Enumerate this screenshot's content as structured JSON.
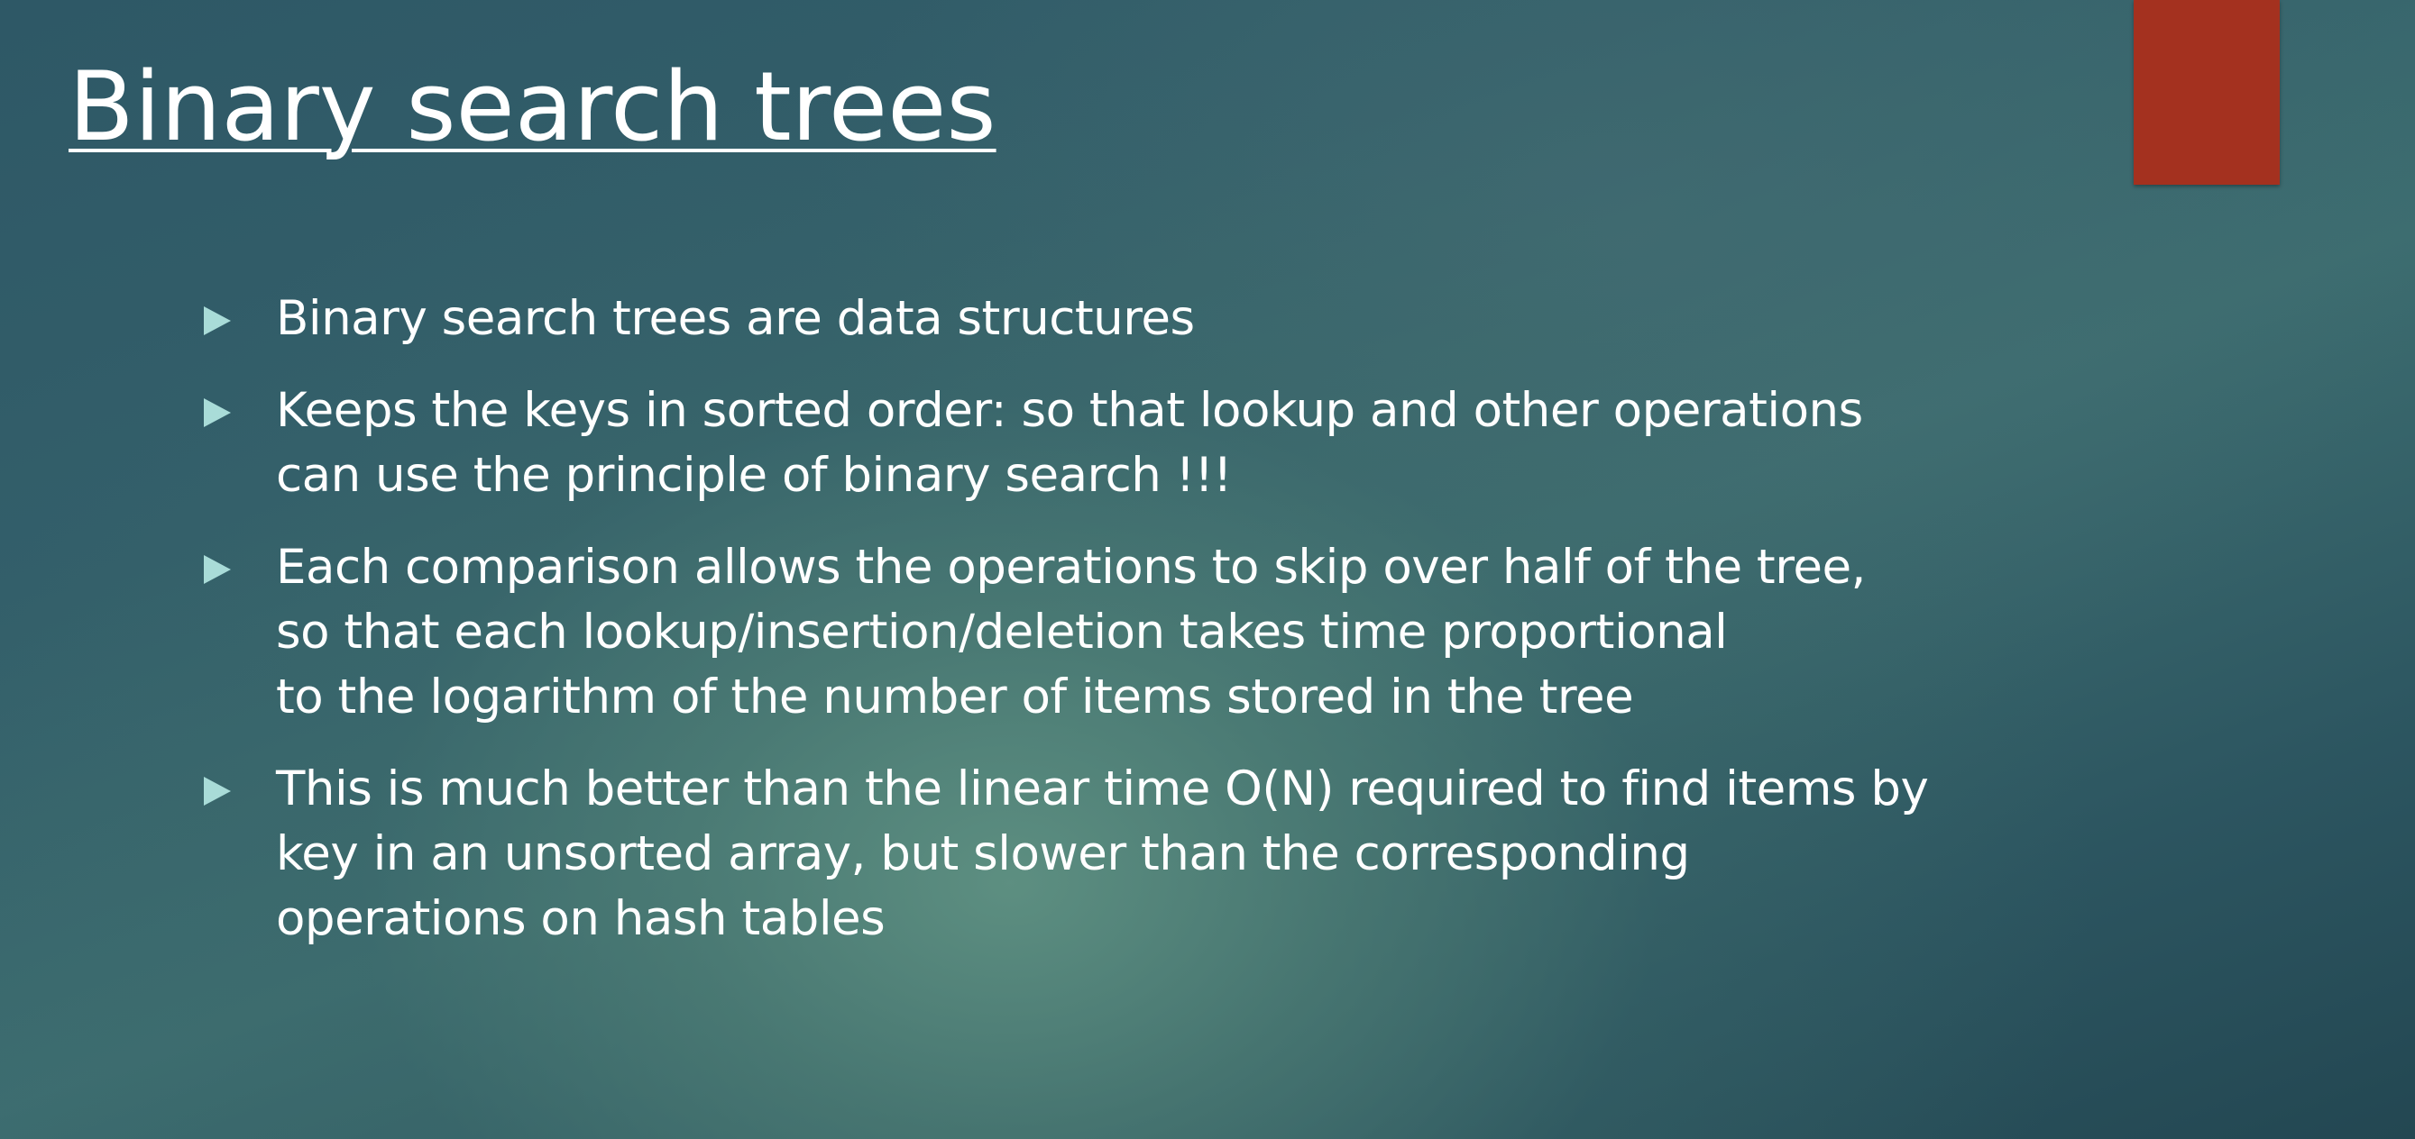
{
  "slide": {
    "title": "Binary search trees",
    "accent_color": "#a4311f",
    "bullet_color": "#a9dcd8",
    "bullets": [
      {
        "text": "Binary search trees are data structures"
      },
      {
        "text": "Keeps the keys in sorted order:  so that lookup and other operations\ncan use the principle of binary search !!!"
      },
      {
        "text": "Each comparison allows the operations to skip over half of the tree,\nso that each lookup/insertion/deletion takes time proportional\nto the logarithm of the number of items stored in the tree"
      },
      {
        "text": "This is much better than the linear time O(N) required to find items by\nkey in an unsorted array, but slower than the corresponding\noperations on hash tables"
      }
    ]
  }
}
